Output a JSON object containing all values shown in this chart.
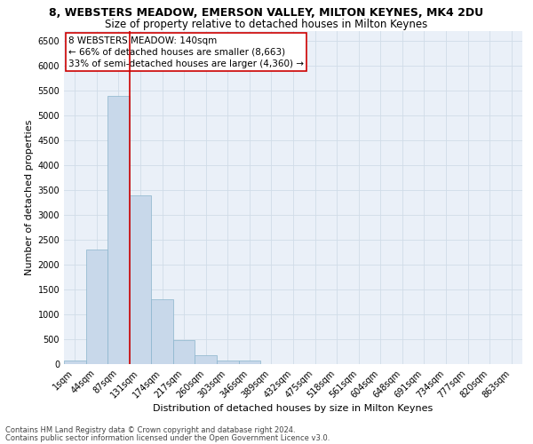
{
  "title": "8, WEBSTERS MEADOW, EMERSON VALLEY, MILTON KEYNES, MK4 2DU",
  "subtitle": "Size of property relative to detached houses in Milton Keynes",
  "xlabel": "Distribution of detached houses by size in Milton Keynes",
  "ylabel": "Number of detached properties",
  "bar_color": "#c8d8ea",
  "bar_edge_color": "#8ab4cc",
  "categories": [
    "1sqm",
    "44sqm",
    "87sqm",
    "131sqm",
    "174sqm",
    "217sqm",
    "260sqm",
    "303sqm",
    "346sqm",
    "389sqm",
    "432sqm",
    "475sqm",
    "518sqm",
    "561sqm",
    "604sqm",
    "648sqm",
    "691sqm",
    "734sqm",
    "777sqm",
    "820sqm",
    "863sqm"
  ],
  "values": [
    70,
    2300,
    5400,
    3400,
    1300,
    480,
    180,
    70,
    70,
    0,
    0,
    0,
    0,
    0,
    0,
    0,
    0,
    0,
    0,
    0,
    0
  ],
  "property_line_idx": 3,
  "property_line_color": "#cc0000",
  "annotation_text": "8 WEBSTERS MEADOW: 140sqm\n← 66% of detached houses are smaller (8,663)\n33% of semi-detached houses are larger (4,360) →",
  "annotation_box_color": "#cc0000",
  "ylim": [
    0,
    6700
  ],
  "yticks": [
    0,
    500,
    1000,
    1500,
    2000,
    2500,
    3000,
    3500,
    4000,
    4500,
    5000,
    5500,
    6000,
    6500
  ],
  "grid_color": "#d0dce8",
  "bg_color": "#eaf0f8",
  "footer_line1": "Contains HM Land Registry data © Crown copyright and database right 2024.",
  "footer_line2": "Contains public sector information licensed under the Open Government Licence v3.0.",
  "title_fontsize": 9,
  "subtitle_fontsize": 8.5,
  "axis_label_fontsize": 8,
  "tick_fontsize": 7,
  "annotation_fontsize": 7.5,
  "footer_fontsize": 6,
  "figwidth": 6.0,
  "figheight": 5.0,
  "dpi": 100
}
